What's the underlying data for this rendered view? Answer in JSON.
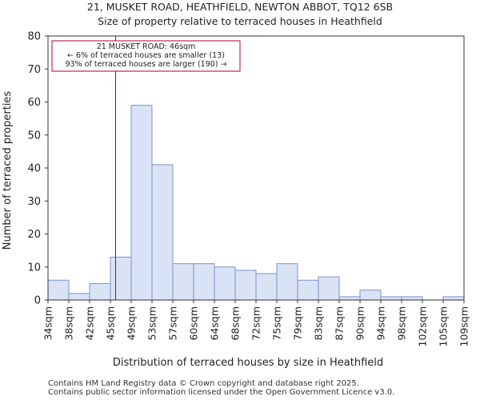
{
  "chart_data": {
    "type": "histogram",
    "title": "21, MUSKET ROAD, HEATHFIELD, NEWTON ABBOT, TQ12 6SB",
    "subtitle": "Size of property relative to terraced houses in Heathfield",
    "xlabel": "Distribution of terraced houses by size in Heathfield",
    "ylabel": "Number of terraced properties",
    "ylim": [
      0,
      80
    ],
    "yticks": [
      0,
      10,
      20,
      30,
      40,
      50,
      60,
      70,
      80
    ],
    "categories": [
      "34sqm",
      "38sqm",
      "42sqm",
      "45sqm",
      "49sqm",
      "53sqm",
      "57sqm",
      "60sqm",
      "64sqm",
      "68sqm",
      "72sqm",
      "75sqm",
      "79sqm",
      "83sqm",
      "87sqm",
      "90sqm",
      "94sqm",
      "98sqm",
      "102sqm",
      "105sqm",
      "109sqm"
    ],
    "values": [
      6,
      2,
      5,
      13,
      59,
      41,
      11,
      11,
      10,
      9,
      8,
      11,
      6,
      7,
      1,
      3,
      1,
      1,
      0,
      1
    ],
    "bar_color": "#dae3f5",
    "bar_edge_color": "#7b93c8",
    "marker": {
      "value_sqm": 46,
      "line_color": "#b00020",
      "annotation_lines": [
        "21 MUSKET ROAD: 46sqm",
        "← 6% of terraced houses are smaller (13)",
        "93% of terraced houses are larger (190) →"
      ]
    }
  },
  "footer": {
    "line1": "Contains HM Land Registry data © Crown copyright and database right 2025.",
    "line2": "Contains public sector information licensed under the Open Government Licence v3.0."
  }
}
